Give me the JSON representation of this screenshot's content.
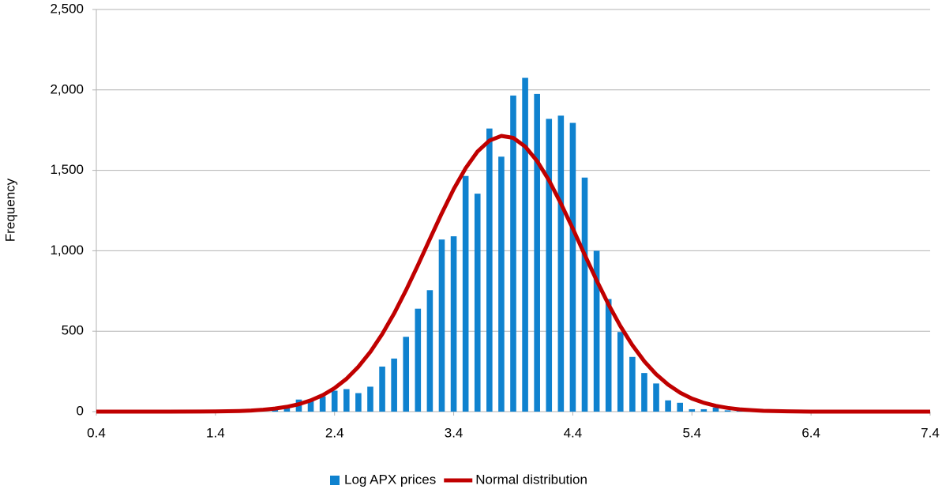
{
  "chart_data": {
    "type": "combo",
    "y_label": "Frequency",
    "xlim": [
      0.4,
      7.4
    ],
    "xticks": [
      0.4,
      1.4,
      2.4,
      3.4,
      4.4,
      5.4,
      6.4,
      7.4
    ],
    "ylim": [
      0,
      2500
    ],
    "yticks": [
      0,
      500,
      {
        "value": 1000,
        "label": "1,000"
      },
      {
        "value": 1500,
        "label": "1,500"
      },
      {
        "value": 2000,
        "label": "2,000"
      },
      {
        "value": 2500,
        "label": "2,500"
      }
    ],
    "grid": true,
    "legend": "bottom",
    "series": [
      {
        "name": "Log APX prices",
        "type": "bar",
        "color": "#0f82cf",
        "x": [
          1.9,
          2.0,
          2.1,
          2.2,
          2.3,
          2.4,
          2.5,
          2.6,
          2.7,
          2.8,
          2.9,
          3.0,
          3.1,
          3.2,
          3.3,
          3.4,
          3.5,
          3.6,
          3.7,
          3.8,
          3.9,
          4.0,
          4.1,
          4.2,
          4.3,
          4.4,
          4.5,
          4.6,
          4.7,
          4.8,
          4.9,
          5.0,
          5.1,
          5.2,
          5.3,
          5.4,
          5.5,
          5.6,
          5.7,
          5.8
        ],
        "values": [
          10,
          30,
          75,
          65,
          95,
          130,
          140,
          115,
          155,
          280,
          330,
          465,
          640,
          755,
          1070,
          1090,
          1465,
          1355,
          1760,
          1585,
          1965,
          2075,
          1975,
          1820,
          1840,
          1795,
          1455,
          1000,
          700,
          495,
          340,
          240,
          175,
          70,
          55,
          15,
          15,
          25,
          8,
          5
        ]
      },
      {
        "name": "Normal distribution",
        "type": "line",
        "color": "#c00000",
        "x": [
          0.4,
          1.0,
          1.4,
          1.6,
          1.7,
          1.8,
          1.9,
          2.0,
          2.1,
          2.2,
          2.3,
          2.4,
          2.5,
          2.6,
          2.7,
          2.8,
          2.9,
          3.0,
          3.1,
          3.2,
          3.3,
          3.4,
          3.5,
          3.6,
          3.7,
          3.8,
          3.9,
          4.0,
          4.1,
          4.2,
          4.3,
          4.4,
          4.5,
          4.6,
          4.7,
          4.8,
          4.9,
          5.0,
          5.1,
          5.2,
          5.3,
          5.4,
          5.5,
          5.6,
          5.7,
          5.8,
          5.9,
          6.0,
          6.2,
          6.4,
          7.0,
          7.4
        ],
        "values": [
          0,
          0,
          1,
          4,
          7,
          12,
          19,
          30,
          46,
          70,
          102,
          146,
          204,
          279,
          371,
          482,
          610,
          755,
          911,
          1073,
          1233,
          1383,
          1513,
          1617,
          1685,
          1714,
          1702,
          1648,
          1558,
          1438,
          1294,
          1138,
          975,
          816,
          666,
          531,
          413,
          313,
          232,
          168,
          118,
          81,
          55,
          36,
          23,
          14,
          9,
          5,
          2,
          0,
          0,
          0
        ]
      }
    ]
  }
}
